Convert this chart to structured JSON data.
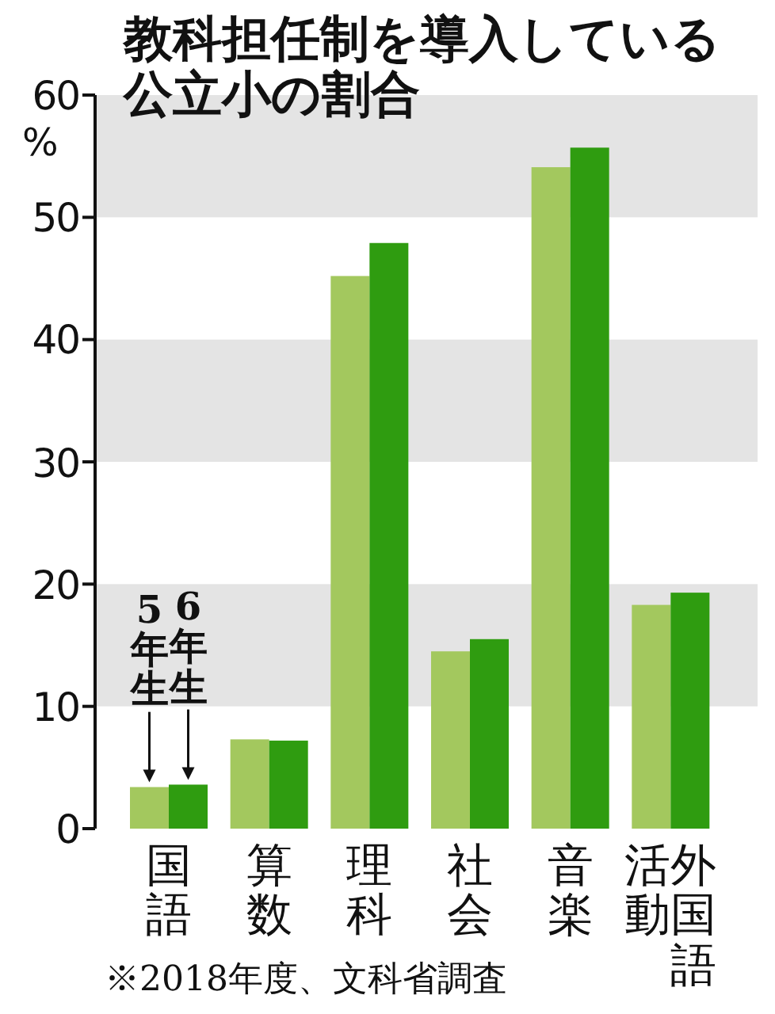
{
  "chart_data": {
    "type": "bar",
    "title": "教科担任制を導入している公立小の割合",
    "ylabel": "%",
    "categories": [
      "国語",
      "算数",
      "理科",
      "社会",
      "音楽",
      "外国語活動"
    ],
    "series": [
      {
        "name": "5年生",
        "color": "#a3c85e",
        "values": [
          3.4,
          7.3,
          45.2,
          14.5,
          54.1,
          18.3
        ]
      },
      {
        "name": "6年生",
        "color": "#2f9c10",
        "values": [
          3.6,
          7.2,
          47.9,
          15.5,
          55.7,
          19.3
        ]
      }
    ],
    "ylim": [
      0,
      60
    ],
    "yticks": [
      0,
      10,
      20,
      30,
      40,
      50,
      60
    ],
    "bands": [
      {
        "axis": "y",
        "from": 10,
        "to": 20,
        "color": "#e4e4e4"
      },
      {
        "axis": "y",
        "from": 30,
        "to": 40,
        "color": "#e4e4e4"
      },
      {
        "axis": "y",
        "from": 50,
        "to": 60,
        "color": "#e4e4e4"
      }
    ],
    "annotations": [
      "※2018年度、文科省調査"
    ],
    "grid": false
  }
}
